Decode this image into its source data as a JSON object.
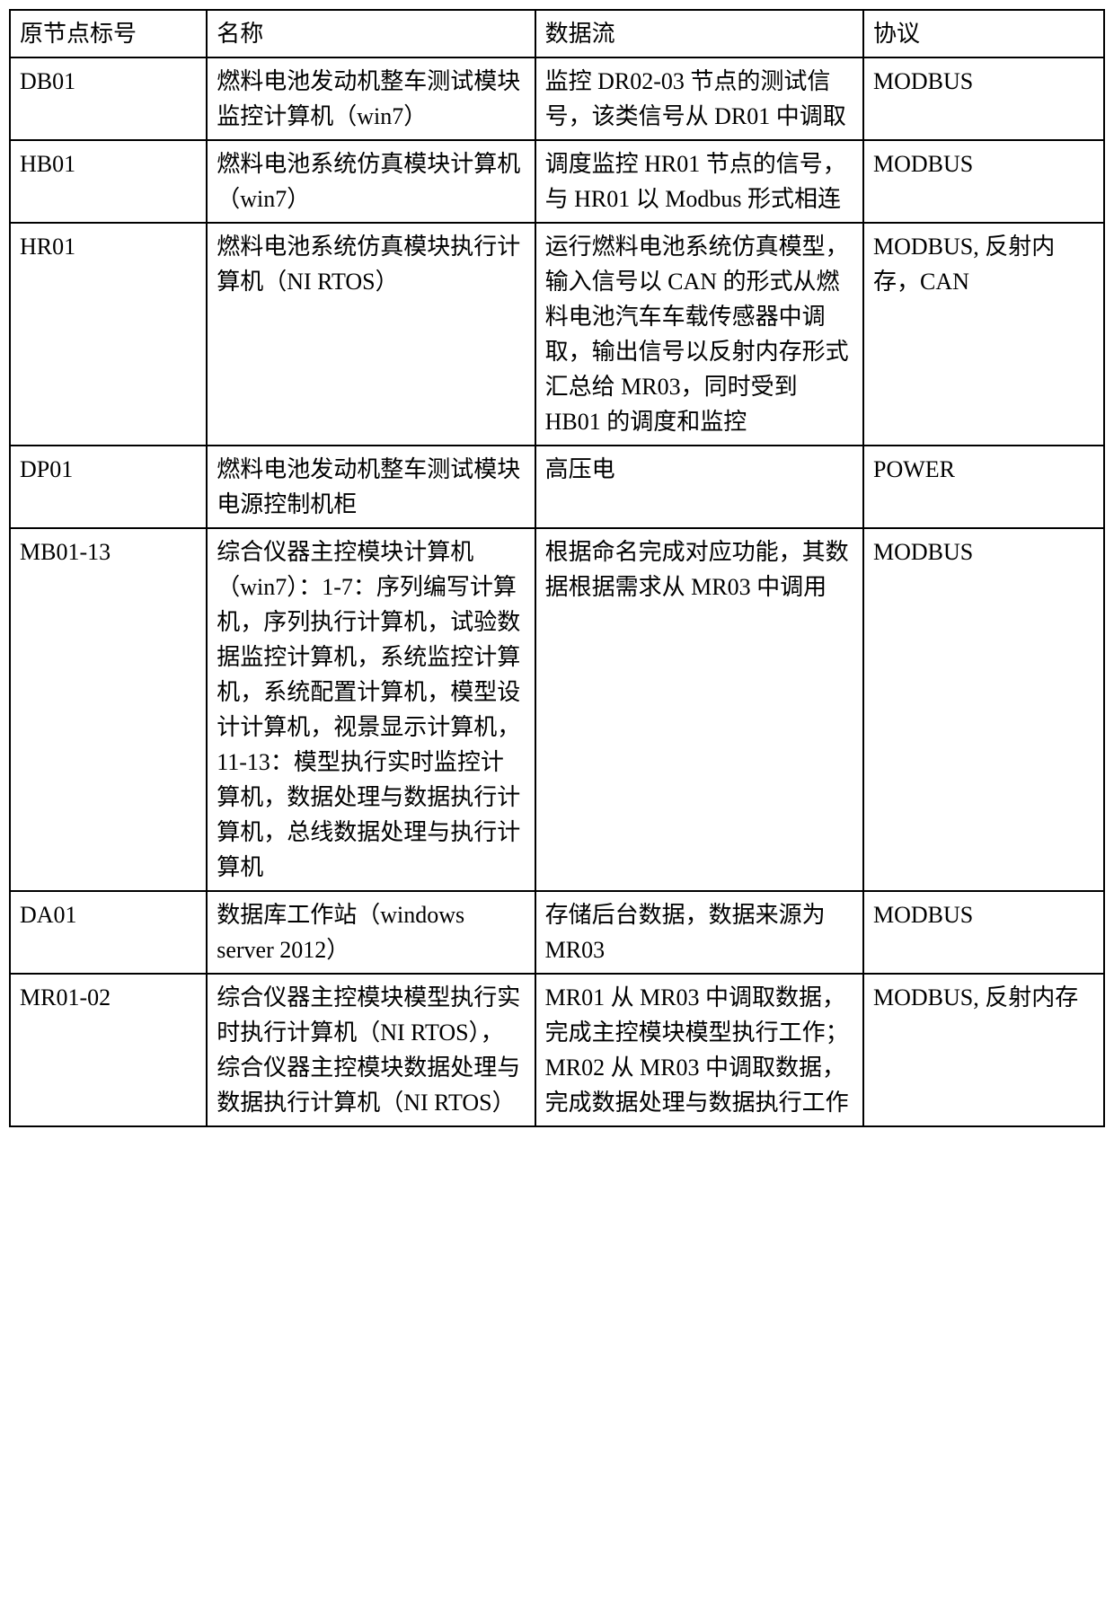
{
  "table": {
    "columns": [
      "原节点标号",
      "名称",
      "数据流",
      "协议"
    ],
    "column_widths": [
      "18%",
      "30%",
      "30%",
      "22%"
    ],
    "border_color": "#000000",
    "background_color": "#ffffff",
    "font_size": 26,
    "rows": [
      {
        "node_id": "DB01",
        "name": "燃料电池发动机整车测试模块监控计算机（win7）",
        "data_flow": "监控 DR02-03 节点的测试信号，该类信号从 DR01 中调取",
        "protocol": "MODBUS"
      },
      {
        "node_id": "HB01",
        "name": "燃料电池系统仿真模块计算机（win7）",
        "data_flow": "调度监控 HR01 节点的信号，与 HR01 以 Modbus 形式相连",
        "protocol": "MODBUS"
      },
      {
        "node_id": "HR01",
        "name": "燃料电池系统仿真模块执行计算机（NI RTOS）",
        "data_flow": "运行燃料电池系统仿真模型，输入信号以 CAN 的形式从燃料电池汽车车载传感器中调取，输出信号以反射内存形式汇总给 MR03，同时受到 HB01 的调度和监控",
        "protocol": "MODBUS, 反射内存，CAN"
      },
      {
        "node_id": "DP01",
        "name": "燃料电池发动机整车测试模块电源控制机柜",
        "data_flow": "高压电",
        "protocol": "POWER"
      },
      {
        "node_id": "MB01-13",
        "name": "综合仪器主控模块计算机（win7）：1-7：序列编写计算机，序列执行计算机，试验数据监控计算机，系统监控计算机，系统配置计算机，模型设计计算机，视景显示计算机，11-13：模型执行实时监控计算机，数据处理与数据执行计算机，总线数据处理与执行计算机",
        "data_flow": "根据命名完成对应功能，其数据根据需求从 MR03 中调用",
        "protocol": "MODBUS"
      },
      {
        "node_id": "DA01",
        "name": "数据库工作站（windows server 2012）",
        "data_flow": "存储后台数据，数据来源为 MR03",
        "protocol": "MODBUS"
      },
      {
        "node_id": "MR01-02",
        "name": "综合仪器主控模块模型执行实时执行计算机（NI RTOS），综合仪器主控模块数据处理与数据执行计算机（NI RTOS）",
        "data_flow": "MR01 从 MR03 中调取数据，完成主控模块模型执行工作； MR02 从 MR03 中调取数据，完成数据处理与数据执行工作",
        "protocol": "MODBUS, 反射内存"
      }
    ]
  }
}
